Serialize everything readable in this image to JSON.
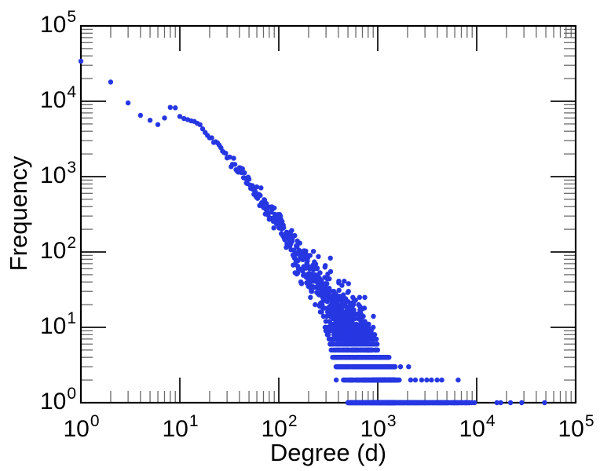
{
  "page": {
    "background": "#ffffff"
  },
  "chart_data": {
    "type": "scatter",
    "title": "",
    "xlabel": "Degree (d)",
    "ylabel": "Frequency",
    "x_scale": "log",
    "y_scale": "log",
    "xlim": [
      1,
      100000
    ],
    "ylim": [
      1,
      100000
    ],
    "grid": false,
    "legend": null,
    "tick_base": "10",
    "x_tick_exponents": [
      0,
      1,
      2,
      3,
      4,
      5
    ],
    "y_tick_exponents": [
      0,
      1,
      2,
      3,
      4,
      5
    ],
    "axis_color": "#000000",
    "major_tick_color": "#2b2b2b",
    "minor_tick_color": "#6a6a6a",
    "marker": {
      "color": "#2637e2",
      "radius": 3.2
    },
    "head_points": [
      [
        1,
        34000
      ],
      [
        2,
        18000
      ],
      [
        3,
        9500
      ],
      [
        4,
        6500
      ],
      [
        5,
        5600
      ],
      [
        6,
        4900
      ],
      [
        7,
        6000
      ],
      [
        8,
        8300
      ],
      [
        9,
        8200
      ],
      [
        10,
        6300
      ],
      [
        11,
        5900
      ],
      [
        12,
        5700
      ],
      [
        13,
        5500
      ],
      [
        14,
        5400
      ],
      [
        15,
        5100
      ]
    ],
    "powerlaw_knots": [
      [
        1.19,
        3.7
      ],
      [
        1.6,
        3.1
      ],
      [
        2.0,
        2.38
      ],
      [
        2.3,
        1.72
      ],
      [
        2.52,
        1.33
      ],
      [
        2.7,
        0.95
      ],
      [
        3.0,
        0.42
      ],
      [
        3.18,
        0.22
      ]
    ],
    "powerlaw_d_range": [
      16,
      1500
    ],
    "noise_sigma_knots": [
      [
        1.2,
        0.015
      ],
      [
        1.5,
        0.035
      ],
      [
        1.8,
        0.06
      ],
      [
        2.1,
        0.1
      ],
      [
        2.4,
        0.16
      ],
      [
        2.7,
        0.22
      ],
      [
        3.2,
        0.24
      ]
    ],
    "tail_bands": [
      {
        "f": 1,
        "d_start": 500,
        "d_end": 9000,
        "density": 0.95,
        "isolated_d": [
          9500,
          16000,
          17500,
          22000,
          28500,
          48500
        ]
      },
      {
        "f": 2,
        "d_start": 450,
        "d_end": 1650,
        "density": 0.8,
        "isolated_d": [
          380,
          2150,
          2400,
          2780,
          3130,
          3490,
          3980,
          4440,
          6500
        ]
      },
      {
        "f": 3,
        "d_start": 380,
        "d_end": 1400,
        "density": 0.7,
        "isolated_d": [
          1700,
          2050
        ]
      },
      {
        "f": 4,
        "d_start": 350,
        "d_end": 1000,
        "density": 0.65,
        "isolated_d": [
          1150
        ]
      },
      {
        "f": 5,
        "d_start": 340,
        "d_end": 900,
        "density": 0.6,
        "isolated_d": []
      },
      {
        "f": 6,
        "d_start": 330,
        "d_end": 820,
        "density": 0.55,
        "isolated_d": []
      },
      {
        "f": 7,
        "d_start": 320,
        "d_end": 700,
        "density": 0.5,
        "isolated_d": []
      },
      {
        "f": 8,
        "d_start": 310,
        "d_end": 620,
        "density": 0.45,
        "isolated_d": []
      },
      {
        "f": 9,
        "d_start": 300,
        "d_end": 540,
        "density": 0.4,
        "isolated_d": []
      },
      {
        "f": 10,
        "d_start": 295,
        "d_end": 480,
        "density": 0.4,
        "isolated_d": []
      }
    ],
    "spikes": [
      {
        "d_range": [
          395,
          470
        ],
        "f_range": [
          8,
          28
        ],
        "count": 30
      },
      {
        "d_range": [
          500,
          525
        ],
        "f_range": [
          7,
          14
        ],
        "count": 10
      },
      {
        "d_range": [
          545,
          685
        ],
        "f_range": [
          6,
          22
        ],
        "count": 36
      },
      {
        "d_range": [
          745,
          840
        ],
        "f_range": [
          4,
          10
        ],
        "count": 12
      }
    ]
  }
}
